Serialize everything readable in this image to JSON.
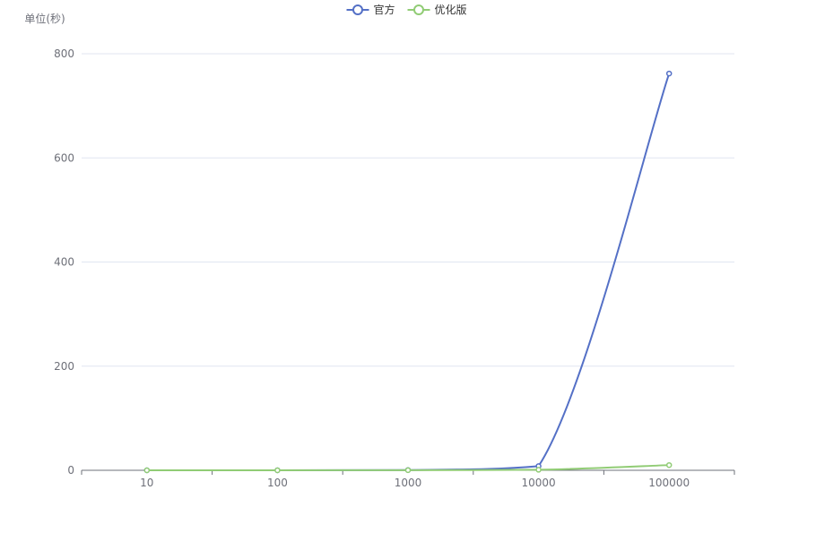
{
  "chart_data": {
    "type": "line",
    "smooth": true,
    "ylabel": "单位(秒)",
    "categories": [
      "10",
      "100",
      "1000",
      "10000",
      "100000"
    ],
    "ylim": [
      0,
      800
    ],
    "y_ticks": [
      0,
      200,
      400,
      600,
      800
    ],
    "grid": true,
    "legend_position": "top-center",
    "series": [
      {
        "name": "官方",
        "color": "#5470c6",
        "values": [
          0.01,
          0.05,
          0.5,
          8,
          762
        ]
      },
      {
        "name": "优化版",
        "color": "#91cc75",
        "values": [
          0.01,
          0.03,
          0.3,
          1,
          10
        ]
      }
    ]
  }
}
